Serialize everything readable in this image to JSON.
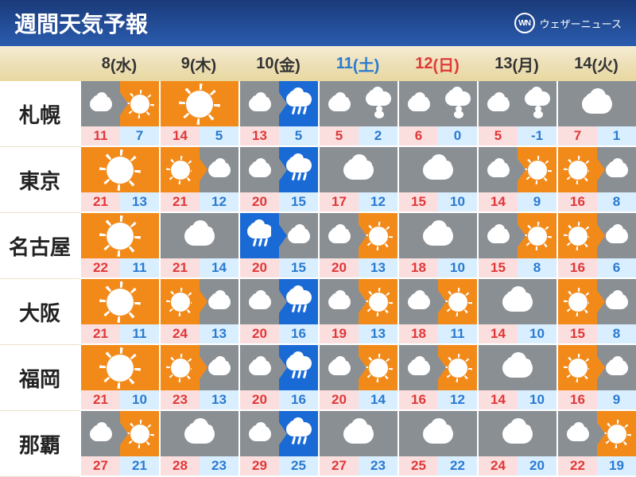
{
  "header": {
    "title": "週間天気予報",
    "brand_initials": "WN",
    "brand_text": "ウェザーニュース"
  },
  "colors": {
    "weekday": "#333333",
    "saturday": "#2a7ad1",
    "sunday": "#e03838",
    "sunny": "#f28a1a",
    "cloudy": "#8a8f94",
    "rain": "#1a6ad6",
    "header_grad_top": "#1a3a7a",
    "header_grad_bot": "#2a5cae",
    "gold_top": "#f5ecd4",
    "gold_bot": "#e8d8a0",
    "hi_bg": "#fbdede",
    "hi_fg": "#e03838",
    "lo_bg": "#d9efff",
    "lo_fg": "#2a7ad1"
  },
  "days": [
    {
      "num": "8",
      "dow": "(水)",
      "type": "weekday"
    },
    {
      "num": "9",
      "dow": "(木)",
      "type": "weekday"
    },
    {
      "num": "10",
      "dow": "(金)",
      "type": "weekday"
    },
    {
      "num": "11",
      "dow": "(土)",
      "type": "saturday"
    },
    {
      "num": "12",
      "dow": "(日)",
      "type": "sunday"
    },
    {
      "num": "13",
      "dow": "(月)",
      "type": "weekday"
    },
    {
      "num": "14",
      "dow": "(火)",
      "type": "weekday"
    }
  ],
  "cities": [
    {
      "name": "札幌",
      "cells": [
        {
          "w": [
            "cloudy",
            "sunny"
          ],
          "hi": "11",
          "lo": "7"
        },
        {
          "w": [
            "sunny"
          ],
          "hi": "14",
          "lo": "5"
        },
        {
          "w": [
            "cloudy",
            "rain"
          ],
          "hi": "13",
          "lo": "5"
        },
        {
          "w": [
            "cloudy",
            "snow"
          ],
          "hi": "5",
          "lo": "2"
        },
        {
          "w": [
            "cloudy",
            "snow"
          ],
          "hi": "6",
          "lo": "0"
        },
        {
          "w": [
            "cloudy",
            "snow"
          ],
          "hi": "5",
          "lo": "-1"
        },
        {
          "w": [
            "cloudy"
          ],
          "hi": "7",
          "lo": "1"
        }
      ]
    },
    {
      "name": "東京",
      "cells": [
        {
          "w": [
            "sunny"
          ],
          "hi": "21",
          "lo": "13"
        },
        {
          "w": [
            "sunny",
            "cloudy"
          ],
          "hi": "21",
          "lo": "12"
        },
        {
          "w": [
            "cloudy",
            "rain"
          ],
          "hi": "20",
          "lo": "15"
        },
        {
          "w": [
            "cloudy"
          ],
          "hi": "17",
          "lo": "12"
        },
        {
          "w": [
            "cloudy"
          ],
          "hi": "15",
          "lo": "10"
        },
        {
          "w": [
            "cloudy",
            "sunny"
          ],
          "hi": "14",
          "lo": "9"
        },
        {
          "w": [
            "sunny",
            "cloudy"
          ],
          "hi": "16",
          "lo": "8"
        }
      ]
    },
    {
      "name": "名古屋",
      "cells": [
        {
          "w": [
            "sunny"
          ],
          "hi": "22",
          "lo": "11"
        },
        {
          "w": [
            "cloudy"
          ],
          "hi": "21",
          "lo": "14"
        },
        {
          "w": [
            "rain",
            "cloudy"
          ],
          "hi": "20",
          "lo": "15"
        },
        {
          "w": [
            "cloudy",
            "sunny"
          ],
          "hi": "20",
          "lo": "13"
        },
        {
          "w": [
            "cloudy"
          ],
          "hi": "18",
          "lo": "10"
        },
        {
          "w": [
            "cloudy",
            "sunny"
          ],
          "hi": "15",
          "lo": "8"
        },
        {
          "w": [
            "sunny",
            "cloudy"
          ],
          "hi": "16",
          "lo": "6"
        }
      ]
    },
    {
      "name": "大阪",
      "cells": [
        {
          "w": [
            "sunny"
          ],
          "hi": "21",
          "lo": "11"
        },
        {
          "w": [
            "sunny",
            "cloudy"
          ],
          "hi": "24",
          "lo": "13"
        },
        {
          "w": [
            "cloudy",
            "rain"
          ],
          "hi": "20",
          "lo": "16"
        },
        {
          "w": [
            "cloudy",
            "sunny"
          ],
          "hi": "19",
          "lo": "13"
        },
        {
          "w": [
            "cloudy",
            "sunny"
          ],
          "hi": "18",
          "lo": "11"
        },
        {
          "w": [
            "cloudy"
          ],
          "hi": "14",
          "lo": "10"
        },
        {
          "w": [
            "sunny",
            "cloudy"
          ],
          "hi": "15",
          "lo": "8"
        }
      ]
    },
    {
      "name": "福岡",
      "cells": [
        {
          "w": [
            "sunny"
          ],
          "hi": "21",
          "lo": "10"
        },
        {
          "w": [
            "sunny",
            "cloudy"
          ],
          "hi": "23",
          "lo": "13"
        },
        {
          "w": [
            "cloudy",
            "rain"
          ],
          "hi": "20",
          "lo": "16"
        },
        {
          "w": [
            "cloudy",
            "sunny"
          ],
          "hi": "20",
          "lo": "14"
        },
        {
          "w": [
            "cloudy",
            "sunny"
          ],
          "hi": "16",
          "lo": "12"
        },
        {
          "w": [
            "cloudy"
          ],
          "hi": "14",
          "lo": "10"
        },
        {
          "w": [
            "sunny",
            "cloudy"
          ],
          "hi": "16",
          "lo": "9"
        }
      ]
    },
    {
      "name": "那覇",
      "cells": [
        {
          "w": [
            "cloudy",
            "sunny"
          ],
          "hi": "27",
          "lo": "21"
        },
        {
          "w": [
            "cloudy"
          ],
          "hi": "28",
          "lo": "23"
        },
        {
          "w": [
            "cloudy",
            "rain"
          ],
          "hi": "29",
          "lo": "25"
        },
        {
          "w": [
            "cloudy"
          ],
          "hi": "27",
          "lo": "23"
        },
        {
          "w": [
            "cloudy"
          ],
          "hi": "25",
          "lo": "22"
        },
        {
          "w": [
            "cloudy"
          ],
          "hi": "24",
          "lo": "20"
        },
        {
          "w": [
            "cloudy",
            "sunny"
          ],
          "hi": "22",
          "lo": "19"
        }
      ]
    }
  ]
}
